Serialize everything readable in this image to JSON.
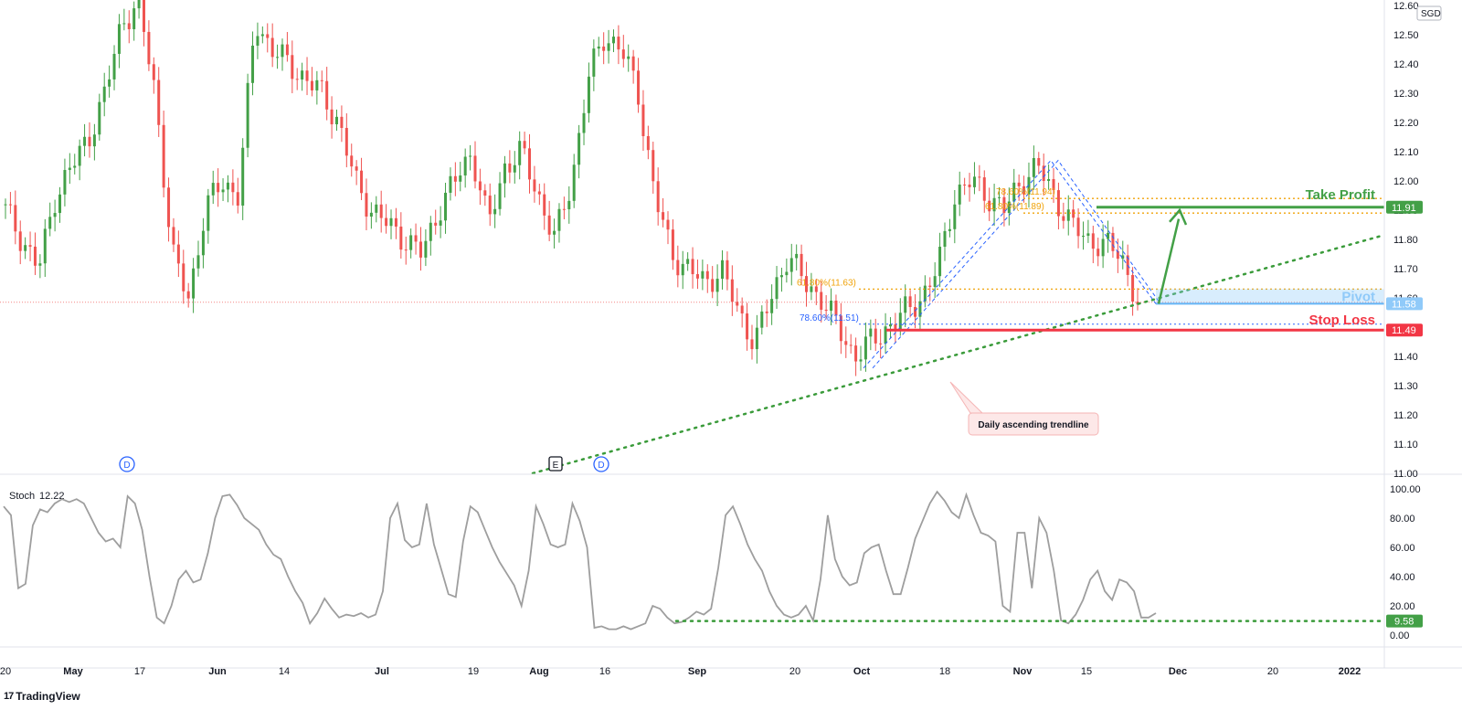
{
  "window": {
    "brand": "TradingView",
    "brand_logo": "17",
    "currency": "SGD"
  },
  "colors": {
    "up": "#26a69a",
    "up_candle": "#43a047",
    "down": "#ef5350",
    "take_profit": "#43a047",
    "stop_loss": "#f23645",
    "pivot": "#90caf9",
    "pivot_tag": "#90caf9",
    "fib": "#f0a30a",
    "trendline": "#3a9b3a",
    "stoch_line": "#9e9e9e"
  },
  "chart_data": [
    {
      "type": "candlestick",
      "title": "",
      "currency": "SGD",
      "y_ticks": [
        "12.60",
        "12.50",
        "12.40",
        "12.30",
        "12.20",
        "12.10",
        "12.00",
        "11.90",
        "11.80",
        "11.70",
        "11.60",
        "11.50",
        "11.40",
        "11.30",
        "11.20",
        "11.10",
        "11.00"
      ],
      "ylim": [
        11.0,
        12.6
      ],
      "x_ticks": [
        "20",
        "May",
        "17",
        "Jun",
        "14",
        "Jul",
        "19",
        "Aug",
        "16",
        "Sep",
        "20",
        "Oct",
        "18",
        "Nov",
        "15",
        "Dec",
        "20",
        "2022"
      ],
      "approx_close_path": [
        11.9,
        11.8,
        11.7,
        11.95,
        12.05,
        12.15,
        12.3,
        12.55,
        12.6,
        12.3,
        11.75,
        11.6,
        11.9,
        12.0,
        11.95,
        12.55,
        12.45,
        12.4,
        12.35,
        12.3,
        12.2,
        12.0,
        11.9,
        11.85,
        11.8,
        11.75,
        11.9,
        12.0,
        12.1,
        11.85,
        12.05,
        12.1,
        11.95,
        11.8,
        12.0,
        12.35,
        12.5,
        12.45,
        12.3,
        11.95,
        11.75,
        11.7,
        11.65,
        11.7,
        11.55,
        11.45,
        11.6,
        11.75,
        11.65,
        11.6,
        11.5,
        11.4,
        11.45,
        11.5,
        11.55,
        11.6,
        11.7,
        11.95,
        12.0,
        11.95,
        11.9,
        12.0,
        12.05,
        11.95,
        11.85,
        11.8,
        11.78,
        11.75,
        11.58
      ],
      "current_price": "11.58",
      "grid": false,
      "levels": [
        {
          "name": "Take Profit",
          "value": 11.91,
          "tag": "11.91"
        },
        {
          "name": "Pivot",
          "value": 11.58,
          "tag": "11.58"
        },
        {
          "name": "Stop Loss",
          "value": 11.49,
          "tag": "11.49"
        }
      ],
      "fib_labels": [
        {
          "text": "61.80%(11.63)",
          "value": 11.63
        },
        {
          "text": "78.60%(11.51)",
          "value": 11.51
        },
        {
          "text": "61.80%(11.89)",
          "value": 11.89
        },
        {
          "text": "78.60%(11.94)",
          "value": 11.94
        }
      ],
      "annotation": "Daily ascending trendline",
      "event_markers": [
        "D",
        "E",
        "D"
      ]
    },
    {
      "type": "line",
      "name": "Stoch",
      "current_value": "12.22",
      "y_ticks": [
        "100.00",
        "80.00",
        "60.00",
        "40.00",
        "20.00",
        "0.00"
      ],
      "ylim": [
        0,
        100
      ],
      "values": [
        88,
        82,
        32,
        35,
        75,
        86,
        84,
        90,
        93,
        91,
        93,
        90,
        80,
        70,
        64,
        66,
        60,
        95,
        90,
        72,
        40,
        12,
        8,
        20,
        38,
        44,
        36,
        38,
        56,
        80,
        95,
        96,
        89,
        80,
        76,
        72,
        62,
        55,
        52,
        40,
        30,
        22,
        8,
        15,
        25,
        18,
        12,
        14,
        13,
        15,
        12,
        14,
        30,
        80,
        90,
        65,
        60,
        62,
        90,
        62,
        45,
        28,
        26,
        64,
        88,
        84,
        72,
        60,
        50,
        42,
        34,
        20,
        44,
        88,
        76,
        62,
        60,
        62,
        90,
        78,
        60,
        5,
        6,
        4,
        4,
        6,
        4,
        6,
        8,
        20,
        18,
        12,
        8,
        9,
        12,
        16,
        14,
        18,
        46,
        82,
        88,
        76,
        62,
        52,
        44,
        30,
        20,
        14,
        12,
        14,
        20,
        10,
        38,
        82,
        52,
        40,
        34,
        36,
        56,
        60,
        62,
        44,
        28,
        28,
        46,
        66,
        78,
        90,
        98,
        92,
        84,
        80,
        96,
        82,
        70,
        68,
        64,
        20,
        16,
        70,
        70,
        32,
        80,
        70,
        44,
        10,
        8,
        14,
        24,
        38,
        44,
        30,
        24,
        38,
        36,
        30,
        12,
        12,
        15
      ],
      "level": 9.58,
      "level_tag": "9.58"
    }
  ]
}
